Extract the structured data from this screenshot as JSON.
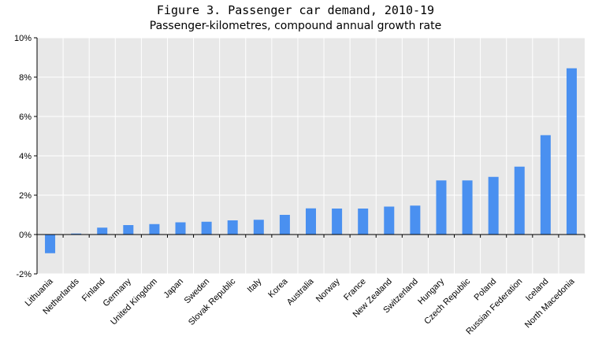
{
  "chart_data": {
    "type": "bar",
    "title": "Figure 3. Passenger car demand, 2010-19",
    "subtitle": "Passenger-kilometres, compound annual growth rate",
    "xlabel": "",
    "ylabel": "",
    "categories": [
      "Lithuania",
      "Netherlands",
      "Finland",
      "Germany",
      "United Kingdom",
      "Japan",
      "Sweden",
      "Slovak Republic",
      "Italy",
      "Korea",
      "Australia",
      "Norway",
      "France",
      "New Zealand",
      "Switzerland",
      "Hungary",
      "Czech Republic",
      "Poland",
      "Russian Federation",
      "Iceland",
      "North Macedonia"
    ],
    "values": [
      -0.95,
      0.05,
      0.35,
      0.48,
      0.53,
      0.62,
      0.65,
      0.72,
      0.75,
      1.0,
      1.33,
      1.32,
      1.32,
      1.42,
      1.47,
      2.75,
      2.75,
      2.93,
      3.45,
      5.05,
      8.45
    ],
    "ylim": [
      -2,
      10
    ],
    "yticks": [
      -2,
      0,
      2,
      4,
      6,
      8,
      10
    ],
    "ytick_labels": [
      "-2%",
      "0%",
      "2%",
      "4%",
      "6%",
      "8%",
      "10%"
    ],
    "grid": true,
    "colors": {
      "bar": "#4a90f0",
      "plot_background": "#e8e8e8",
      "grid": "#ffffff",
      "axis": "#000000"
    }
  }
}
